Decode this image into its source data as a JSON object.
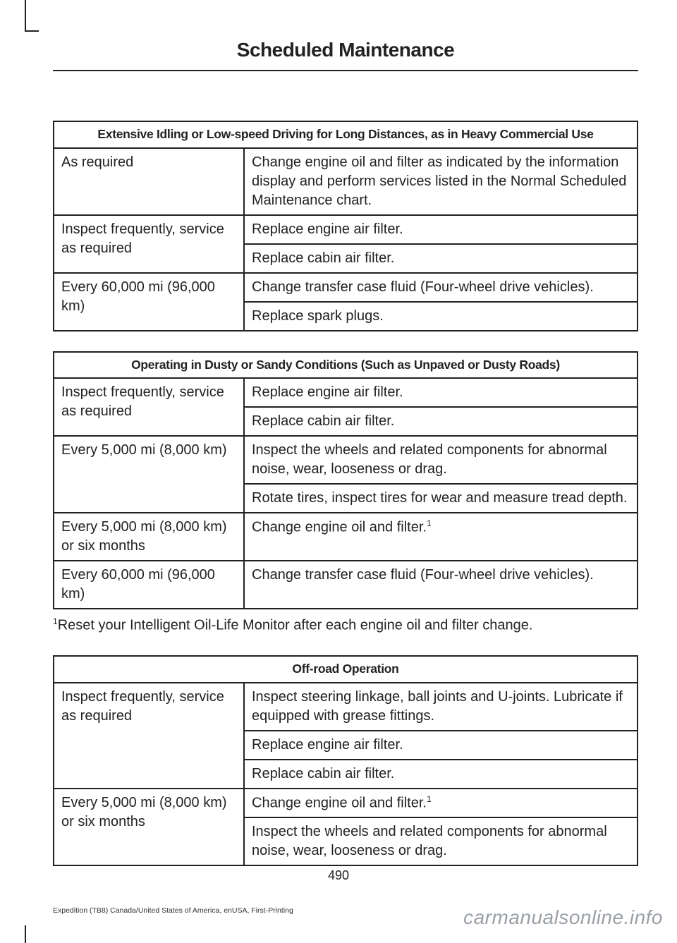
{
  "page_title": "Scheduled Maintenance",
  "table1": {
    "header": "Extensive Idling or Low-speed Driving for Long Distances, as in Heavy Commercial Use",
    "rows": [
      {
        "left": "As required",
        "right": "Change engine oil and filter as indicated by the information display and perform services listed in the Normal Scheduled Maintenance chart.",
        "left_rowspan": 1
      },
      {
        "left": "Inspect frequently, service as required",
        "right": "Replace engine air filter.",
        "left_rowspan": 2
      },
      {
        "right": "Replace cabin air filter."
      },
      {
        "left": "Every 60,000 mi (96,000 km)",
        "right": "Change transfer case fluid (Four-wheel drive vehicles).",
        "left_rowspan": 2
      },
      {
        "right": "Replace spark plugs."
      }
    ]
  },
  "table2": {
    "header": "Operating in Dusty or Sandy Conditions (Such as Unpaved or Dusty Roads)",
    "rows": [
      {
        "left": "Inspect frequently, service as required",
        "right": "Replace engine air filter.",
        "left_rowspan": 2
      },
      {
        "right": "Replace cabin air filter."
      },
      {
        "left": "Every 5,000 mi (8,000 km)",
        "right": "Inspect the wheels and related components for abnormal noise, wear, looseness or drag.",
        "left_rowspan": 2
      },
      {
        "right": "Rotate tires, inspect tires for wear and measure tread depth."
      },
      {
        "left": "Every 5,000 mi (8,000 km) or six months",
        "right": "Change engine oil and filter.",
        "sup": "1",
        "left_rowspan": 1
      },
      {
        "left": "Every 60,000 mi (96,000 km)",
        "right": "Change transfer case fluid (Four-wheel drive vehicles).",
        "left_rowspan": 1
      }
    ]
  },
  "footnote": {
    "sup": "1",
    "text": "Reset your Intelligent Oil-Life Monitor after each engine oil and filter change."
  },
  "table3": {
    "header": "Off-road Operation",
    "rows": [
      {
        "left": "Inspect frequently, service as required",
        "right": "Inspect steering linkage, ball joints and U-joints. Lubricate if equipped with grease fittings.",
        "left_rowspan": 3
      },
      {
        "right": "Replace engine air filter."
      },
      {
        "right": "Replace cabin air filter."
      },
      {
        "left": "Every 5,000 mi (8,000 km) or six months",
        "right": "Change engine oil and filter.",
        "sup": "1",
        "left_rowspan": 2
      },
      {
        "right": "Inspect the wheels and related components for abnormal noise, wear, looseness or drag."
      }
    ]
  },
  "page_number": "490",
  "footer_left": "Expedition (TB8) Canada/United States of America, enUSA, First-Printing",
  "footer_right": "carmanualsonline.info"
}
